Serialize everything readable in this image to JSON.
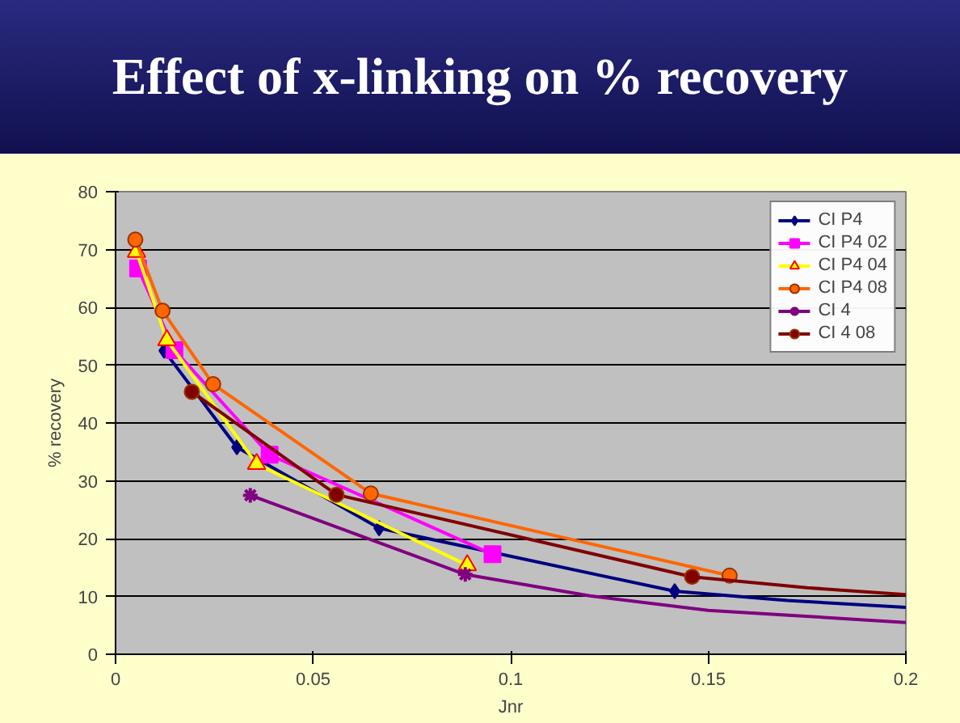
{
  "chart_data": {
    "type": "line",
    "title": "Effect of x-linking on % recovery",
    "xlabel": "Jnr",
    "ylabel": "% recovery",
    "xlim": [
      0,
      0.2
    ],
    "xticks": [
      0,
      0.05,
      0.1,
      0.15,
      0.2
    ],
    "ylim": [
      0,
      80
    ],
    "yticks": [
      0,
      10,
      20,
      30,
      40,
      50,
      60,
      70,
      80
    ],
    "grid": "y",
    "legend": "top right",
    "series": [
      {
        "name": "CI P4",
        "color": "#000080",
        "marker": "diamond",
        "x": [
          0.0123,
          0.0307,
          0.0667,
          0.1415
        ],
        "values": [
          52.5,
          35.8,
          21.8,
          10.9
        ]
      },
      {
        "name": "CI P4 02",
        "color": "#ff00ff",
        "marker": "square",
        "x": [
          0.0057,
          0.0149,
          0.039,
          0.0954
        ],
        "values": [
          66.7,
          52.6,
          34.5,
          17.3
        ]
      },
      {
        "name": "CI P4 04",
        "color": "#ffff00",
        "marker": "triangle",
        "x": [
          0.0053,
          0.013,
          0.0357,
          0.089
        ],
        "values": [
          69.6,
          54.3,
          32.9,
          15.4
        ]
      },
      {
        "name": "CI P4 08",
        "color": "#ff6600",
        "marker": "circle",
        "x": [
          0.005,
          0.0119,
          0.0247,
          0.0646,
          0.1554
        ],
        "values": [
          71.7,
          59.4,
          46.7,
          27.8,
          13.6
        ]
      },
      {
        "name": "CI 4",
        "color": "#800080",
        "marker": "cross",
        "x": [
          0.0341,
          0.0885
        ],
        "values": [
          27.5,
          13.8
        ]
      },
      {
        "name": "CI 4 08",
        "color": "#800000",
        "marker": "circle",
        "x": [
          0.0193,
          0.0559,
          0.1459
        ],
        "values": [
          45.4,
          27.6,
          13.4
        ]
      },
      {
        "color": "#000080",
        "marker": "none",
        "x": [
          0.1415,
          0.17,
          0.2
        ],
        "values": [
          10.9,
          9.3,
          8.1
        ]
      },
      {
        "color": "#800080",
        "marker": "none",
        "x": [
          0.0885,
          0.12,
          0.15,
          0.2
        ],
        "values": [
          13.8,
          10.1,
          7.6,
          5.5
        ]
      },
      {
        "color": "#800000",
        "marker": "none",
        "x": [
          0.1459,
          0.175,
          0.2
        ],
        "values": [
          13.4,
          11.5,
          10.3
        ]
      }
    ]
  }
}
